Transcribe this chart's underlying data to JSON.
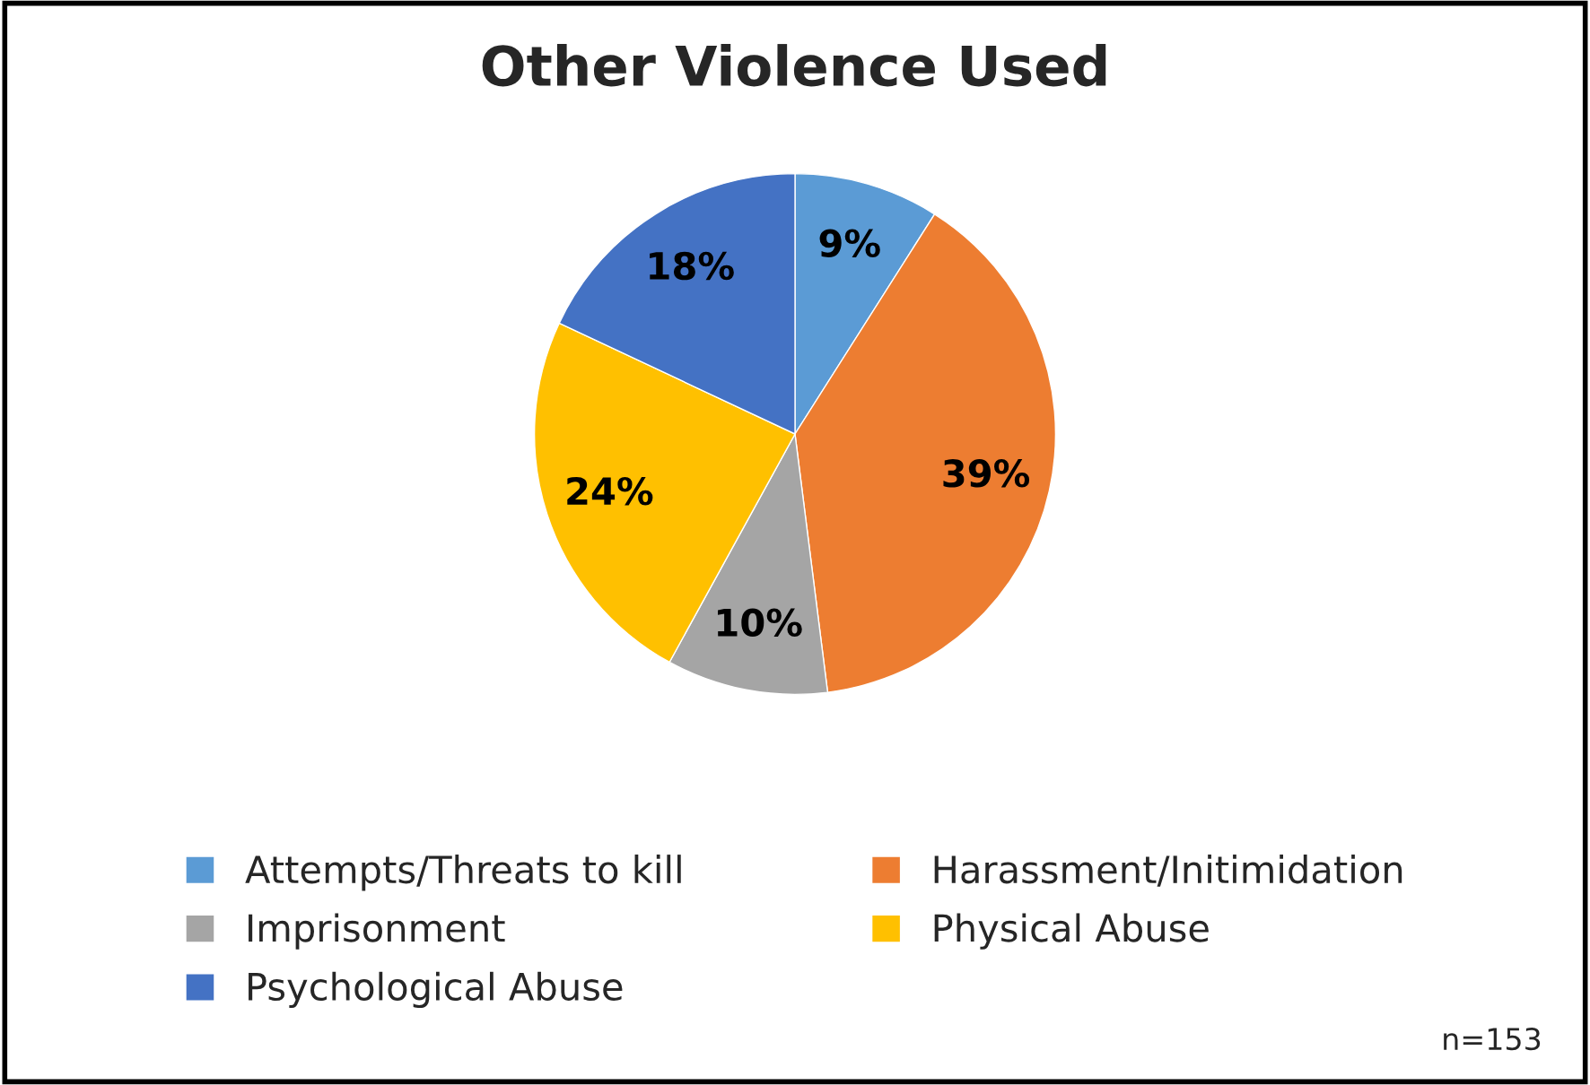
{
  "chart_data": {
    "type": "pie",
    "title": "Other Violence Used",
    "categories": [
      "Attempts/Threats to kill",
      "Harassment/Initimidation",
      "Imprisonment",
      "Physical Abuse",
      "Psychological Abuse"
    ],
    "values": [
      9,
      39,
      10,
      24,
      18
    ],
    "value_labels": [
      "9%",
      "39%",
      "10%",
      "24%",
      "18%"
    ],
    "colors": [
      "#5b9bd5",
      "#ed7d31",
      "#a5a5a5",
      "#ffc000",
      "#4472c4"
    ],
    "legend": "bottom",
    "annotations": [
      "n=153"
    ]
  }
}
